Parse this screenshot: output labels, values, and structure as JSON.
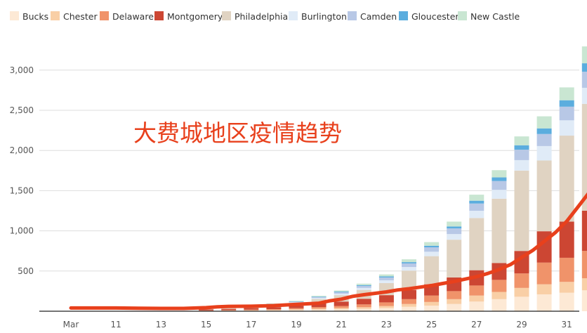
{
  "chart_data": {
    "type": "bar",
    "stacked": true,
    "legend_position": "top-left",
    "grid": true,
    "ylim": [
      0,
      3500
    ],
    "y_ticks": [
      500,
      1000,
      1500,
      2000,
      2500,
      3000
    ],
    "y_tick_labels": [
      "500",
      "1,000",
      "1,500",
      "2,000",
      "2,500",
      "3,000"
    ],
    "x_tick_labels": [
      "Mar",
      "11",
      "13",
      "15",
      "17",
      "19",
      "21",
      "23",
      "25",
      "27",
      "29",
      "31"
    ],
    "annotation": {
      "text": "大费城地区疫情趋势",
      "color": "#e8401c"
    },
    "series": [
      {
        "name": "Bucks",
        "color": "#fde9d5",
        "values": [
          0,
          0,
          0,
          0,
          0,
          0,
          4,
          6,
          8,
          10,
          15,
          20,
          25,
          30,
          40,
          55,
          70,
          90,
          120,
          150,
          180,
          210,
          230,
          260
        ]
      },
      {
        "name": "Chester",
        "color": "#f9cfa6",
        "values": [
          0,
          0,
          0,
          0,
          0,
          0,
          2,
          3,
          4,
          6,
          9,
          12,
          15,
          20,
          25,
          35,
          45,
          60,
          75,
          90,
          110,
          125,
          135,
          150
        ]
      },
      {
        "name": "Delaware",
        "color": "#f0936a",
        "values": [
          0,
          0,
          0,
          0,
          0,
          0,
          4,
          5,
          7,
          10,
          14,
          20,
          25,
          35,
          45,
          60,
          80,
          100,
          125,
          150,
          180,
          270,
          300,
          340
        ]
      },
      {
        "name": "Montgomery",
        "color": "#cc4633",
        "values": [
          0,
          0,
          0,
          0,
          0,
          0,
          12,
          15,
          20,
          25,
          30,
          45,
          55,
          70,
          90,
          115,
          140,
          170,
          190,
          210,
          280,
          390,
          450,
          500
        ]
      },
      {
        "name": "Philadelphia",
        "color": "#e0d3c2",
        "values": [
          0,
          0,
          0,
          0,
          0,
          0,
          5,
          10,
          18,
          25,
          35,
          55,
          80,
          110,
          150,
          240,
          350,
          470,
          650,
          800,
          1000,
          880,
          1070,
          1330
        ]
      },
      {
        "name": "Burlington",
        "color": "#e0ebf7",
        "values": [
          0,
          0,
          0,
          0,
          0,
          0,
          2,
          3,
          4,
          6,
          8,
          12,
          18,
          25,
          35,
          45,
          55,
          70,
          90,
          110,
          130,
          180,
          190,
          200
        ]
      },
      {
        "name": "Camden",
        "color": "#b8c8e6",
        "values": [
          0,
          0,
          0,
          0,
          0,
          0,
          2,
          3,
          4,
          6,
          8,
          12,
          18,
          25,
          35,
          45,
          55,
          70,
          90,
          110,
          130,
          150,
          170,
          200
        ]
      },
      {
        "name": "Gloucester",
        "color": "#5badde",
        "values": [
          0,
          0,
          0,
          0,
          0,
          0,
          1,
          1,
          2,
          3,
          4,
          6,
          8,
          10,
          13,
          16,
          20,
          25,
          35,
          45,
          55,
          70,
          80,
          105
        ]
      },
      {
        "name": "New Castle",
        "color": "#c9e6d2",
        "values": [
          0,
          0,
          0,
          0,
          0,
          0,
          1,
          2,
          3,
          5,
          7,
          10,
          14,
          18,
          25,
          35,
          45,
          60,
          75,
          90,
          110,
          150,
          160,
          210
        ]
      }
    ],
    "trend_line": {
      "color": "#e8401c",
      "points": [
        [
          0.0,
          40
        ],
        [
          1,
          40
        ],
        [
          2,
          40
        ],
        [
          3,
          38
        ],
        [
          4,
          35
        ],
        [
          5,
          35
        ],
        [
          6,
          45
        ],
        [
          6.5,
          55
        ],
        [
          7,
          60
        ],
        [
          8,
          62
        ],
        [
          9,
          70
        ],
        [
          10,
          85
        ],
        [
          11,
          100
        ],
        [
          11.5,
          130
        ],
        [
          12,
          150
        ],
        [
          12.5,
          185
        ],
        [
          13,
          205
        ],
        [
          14,
          240
        ],
        [
          14.5,
          265
        ],
        [
          15,
          280
        ],
        [
          15.5,
          300
        ],
        [
          16,
          320
        ],
        [
          16.5,
          345
        ],
        [
          17,
          370
        ],
        [
          17.5,
          400
        ],
        [
          18,
          430
        ],
        [
          18.5,
          470
        ],
        [
          19,
          520
        ],
        [
          19.5,
          580
        ],
        [
          20,
          670
        ],
        [
          20.5,
          760
        ],
        [
          21,
          870
        ],
        [
          21.5,
          980
        ],
        [
          22,
          1120
        ],
        [
          22.5,
          1300
        ],
        [
          23,
          1480
        ],
        [
          23.5,
          1680
        ],
        [
          24,
          1860
        ],
        [
          24.5,
          2080
        ],
        [
          25,
          2270
        ],
        [
          25.5,
          2420
        ],
        [
          26,
          2580
        ],
        [
          26.5,
          2760
        ],
        [
          27,
          2960
        ],
        [
          27.5,
          3150
        ],
        [
          28,
          3350
        ],
        [
          28.5,
          3520
        ],
        [
          29,
          3650
        ],
        [
          29.5,
          3800
        ]
      ]
    }
  }
}
